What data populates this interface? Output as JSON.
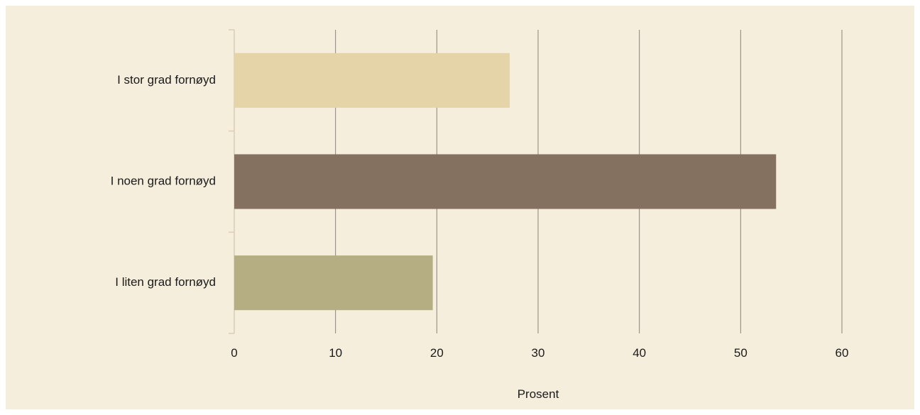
{
  "chart_data": {
    "type": "bar",
    "orientation": "horizontal",
    "categories": [
      "I stor grad fornøyd",
      "I noen grad fornøyd",
      "I liten grad fornøyd"
    ],
    "values": [
      27.2,
      53.5,
      19.6
    ],
    "colors": [
      "#e4d4a8",
      "#847160",
      "#b5ae82"
    ],
    "title": "",
    "xlabel": "Prosent",
    "ylabel": "",
    "xlim": [
      0,
      60
    ],
    "xticks": [
      0,
      10,
      20,
      30,
      40,
      50,
      60
    ],
    "grid": "vertical",
    "legend": "none"
  },
  "style": {
    "panel_background": "#f6eedd",
    "gridline_color": "#8a8278",
    "axis_color": "#d9cdb6"
  }
}
